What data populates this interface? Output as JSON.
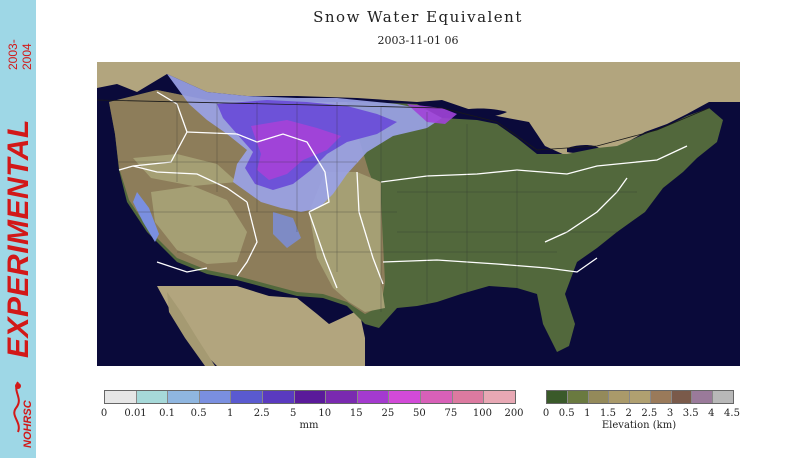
{
  "title": "Snow Water Equivalent",
  "timestamp": "2003-11-01 06",
  "side_banner": {
    "years": [
      "2003-",
      "2004"
    ],
    "label": "EXPERIMENTAL",
    "logo_text": "NOHRSC"
  },
  "map": {
    "region": "Contiguous United States",
    "colors": {
      "ocean": "#0a0a3a",
      "canada_mexico": "#b2a57e",
      "low_elevation": "#52683c",
      "plains": "#a59f74",
      "mountains": "#8d7d5a",
      "swe_light": "#9aa2e6",
      "swe_mid": "#6d52d8",
      "swe_heavy": "#a043d8"
    }
  },
  "swe_legend": {
    "unit": "mm",
    "ticks": [
      "0",
      "0.01",
      "0.1",
      "0.5",
      "1",
      "2.5",
      "5",
      "10",
      "15",
      "25",
      "50",
      "75",
      "100",
      "200"
    ],
    "colors": [
      "#e6e6e6",
      "#a6d9d9",
      "#8fb6e0",
      "#7a8fe0",
      "#5a5ad0",
      "#5a3ac0",
      "#5a1a9a",
      "#7a2ab0",
      "#a43acf",
      "#d24ad8",
      "#d860b8",
      "#dc7aa0",
      "#e8a8b4"
    ]
  },
  "elevation_legend": {
    "unit": "Elevation (km)",
    "ticks": [
      "0",
      "0.5",
      "1",
      "1.5",
      "2",
      "2.5",
      "3",
      "3.5",
      "4",
      "4.5"
    ],
    "colors": [
      "#3a5a2a",
      "#6a7a40",
      "#948a5a",
      "#aa9a6a",
      "#b0a070",
      "#9a7a5a",
      "#7a5a4a",
      "#9a7a9a",
      "#b8b8b8"
    ]
  }
}
